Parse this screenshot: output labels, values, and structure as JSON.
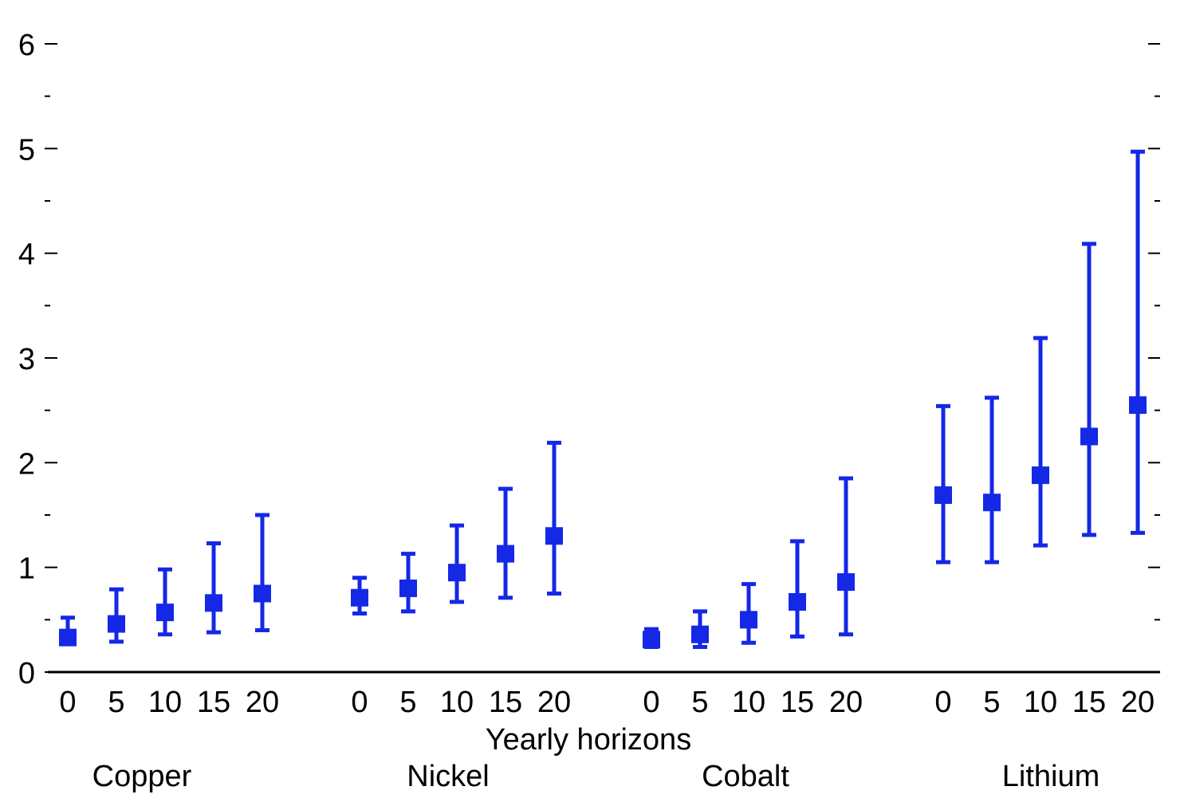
{
  "chart_data": {
    "type": "scatter",
    "subtype": "point-with-error-bars",
    "title": "",
    "xlabel": "Yearly horizons",
    "ylabel": "",
    "ylim": [
      0,
      6
    ],
    "y_major_ticks": [
      0,
      1,
      2,
      3,
      4,
      5,
      6
    ],
    "y_minor_ticks": [
      0.5,
      1.5,
      2.5,
      3.5,
      4.5,
      5.5
    ],
    "right_axis_ticks": true,
    "grid": false,
    "legend": "none",
    "color": "#1428e6",
    "marker": "square",
    "horizons": [
      "0",
      "5",
      "10",
      "15",
      "20"
    ],
    "groups": [
      {
        "name": "Copper",
        "points": [
          {
            "h": "0",
            "value": 0.33,
            "lower": 0.27,
            "upper": 0.52
          },
          {
            "h": "5",
            "value": 0.46,
            "lower": 0.29,
            "upper": 0.79
          },
          {
            "h": "10",
            "value": 0.57,
            "lower": 0.36,
            "upper": 0.98
          },
          {
            "h": "15",
            "value": 0.66,
            "lower": 0.38,
            "upper": 1.23
          },
          {
            "h": "20",
            "value": 0.75,
            "lower": 0.4,
            "upper": 1.5
          }
        ]
      },
      {
        "name": "Nickel",
        "points": [
          {
            "h": "0",
            "value": 0.71,
            "lower": 0.56,
            "upper": 0.9
          },
          {
            "h": "5",
            "value": 0.8,
            "lower": 0.58,
            "upper": 1.13
          },
          {
            "h": "10",
            "value": 0.95,
            "lower": 0.67,
            "upper": 1.4
          },
          {
            "h": "15",
            "value": 1.13,
            "lower": 0.71,
            "upper": 1.75
          },
          {
            "h": "20",
            "value": 1.3,
            "lower": 0.75,
            "upper": 2.19
          }
        ]
      },
      {
        "name": "Cobalt",
        "points": [
          {
            "h": "0",
            "value": 0.31,
            "lower": 0.24,
            "upper": 0.41
          },
          {
            "h": "5",
            "value": 0.36,
            "lower": 0.24,
            "upper": 0.58
          },
          {
            "h": "10",
            "value": 0.5,
            "lower": 0.28,
            "upper": 0.84
          },
          {
            "h": "15",
            "value": 0.67,
            "lower": 0.34,
            "upper": 1.25
          },
          {
            "h": "20",
            "value": 0.86,
            "lower": 0.36,
            "upper": 1.85
          }
        ]
      },
      {
        "name": "Lithium",
        "points": [
          {
            "h": "0",
            "value": 1.69,
            "lower": 1.05,
            "upper": 2.54
          },
          {
            "h": "5",
            "value": 1.62,
            "lower": 1.05,
            "upper": 2.62
          },
          {
            "h": "10",
            "value": 1.88,
            "lower": 1.21,
            "upper": 3.19
          },
          {
            "h": "15",
            "value": 2.25,
            "lower": 1.31,
            "upper": 4.09
          },
          {
            "h": "20",
            "value": 2.55,
            "lower": 1.33,
            "upper": 4.97
          }
        ]
      }
    ]
  }
}
